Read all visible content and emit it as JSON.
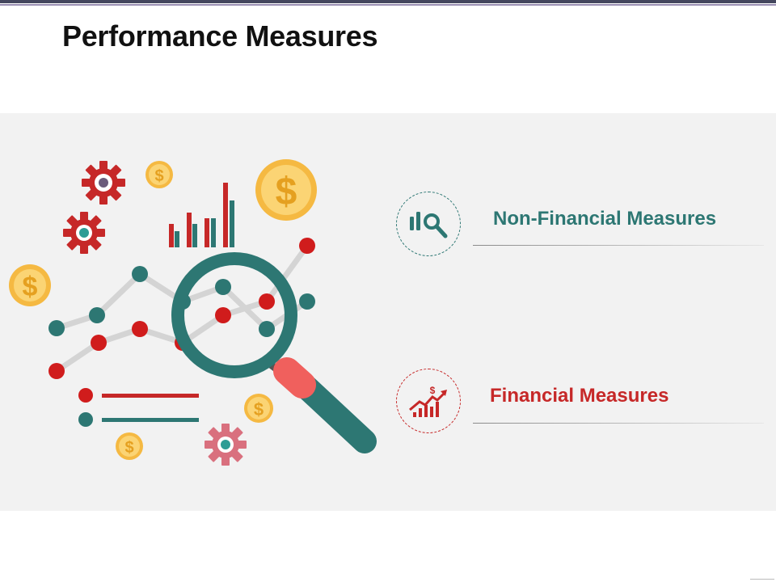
{
  "slide": {
    "title": "Performance Measures"
  },
  "measures": [
    {
      "label": "Non-Financial Measures",
      "icon": "chart-magnifier-icon",
      "color": "#2d7773"
    },
    {
      "label": "Financial Measures",
      "icon": "rising-dollar-chart-icon",
      "color": "#c62828"
    }
  ],
  "colors": {
    "teal": "#2d7773",
    "red": "#c62828",
    "coral": "#f0605d",
    "gold": "#f9c74f",
    "panel": "#f2f2f2"
  },
  "illustration": {
    "icons": [
      "gear-icon",
      "dollar-coin-icon",
      "bar-chart-icon",
      "line-chart-icon",
      "magnifying-glass-icon",
      "legend-icon"
    ],
    "coin_symbol": "$"
  }
}
